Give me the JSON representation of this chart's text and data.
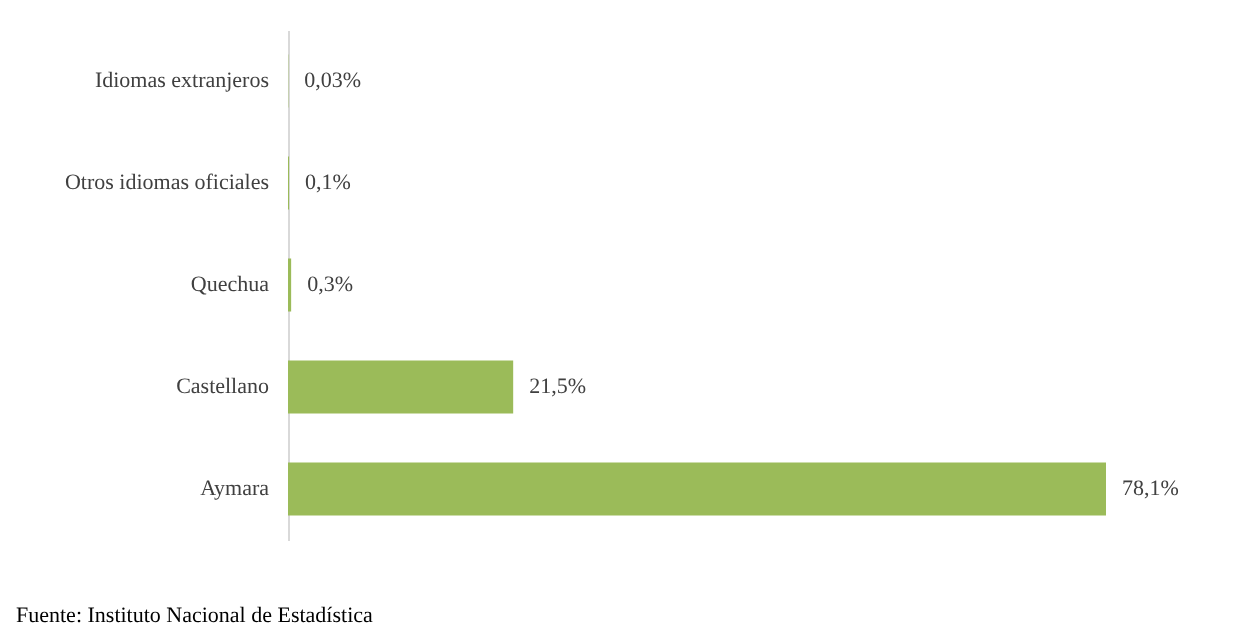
{
  "chart_data": {
    "type": "bar",
    "orientation": "horizontal",
    "categories": [
      "Idiomas extranjeros",
      "Otros idiomas oficiales",
      "Quechua",
      "Castellano",
      "Aymara"
    ],
    "values": [
      0.03,
      0.1,
      0.3,
      21.5,
      78.1
    ],
    "value_labels": [
      "0,03%",
      "0,1%",
      "0,3%",
      "21,5%",
      "78,1%"
    ],
    "color": "#9bbb59",
    "annotations": [
      "Fuente: Instituto Nacional de Estadística"
    ]
  }
}
